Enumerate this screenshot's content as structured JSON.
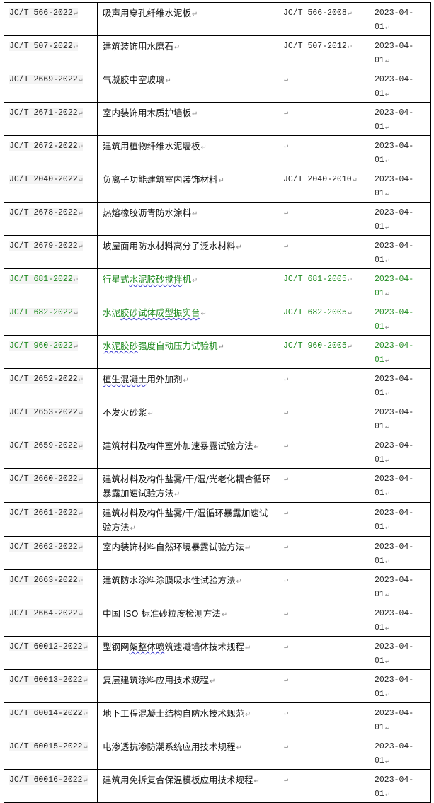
{
  "colors": {
    "green_rows": "#1e8a1e",
    "text": "#111111"
  },
  "rows": [
    {
      "code": "JC/T 566-2022",
      "name": "吸声用穿孔纤维水泥板",
      "replaces": "JC/T 566-2008",
      "date": "2023-04-01"
    },
    {
      "code": "JC/T 507-2022",
      "name": "建筑装饰用水磨石",
      "replaces": "JC/T 507-2012",
      "date": "2023-04-01"
    },
    {
      "code": "JC/T 2669-2022",
      "name": "气凝胶中空玻璃",
      "replaces": "",
      "date": "2023-04-01"
    },
    {
      "code": "JC/T 2671-2022",
      "name": "室内装饰用木质护墙板",
      "replaces": "",
      "date": "2023-04-01"
    },
    {
      "code": "JC/T 2672-2022",
      "name": "建筑用植物纤维水泥墙板",
      "replaces": "",
      "date": "2023-04-01"
    },
    {
      "code": "JC/T 2040-2022",
      "name": "负离子功能建筑室内装饰材料",
      "replaces": "JC/T 2040-2010",
      "date": "2023-04-01"
    },
    {
      "code": "JC/T 2678-2022",
      "name": "热熔橡胶沥青防水涂料",
      "replaces": "",
      "date": "2023-04-01"
    },
    {
      "code": "JC/T 2679-2022",
      "name": "坡屋面用防水材料高分子泛水材料",
      "replaces": "",
      "date": "2023-04-01"
    },
    {
      "code": "JC/T 681-2022",
      "name": "行星式水泥胶砂搅拌机",
      "replaces": "JC/T 681-2005",
      "date": "2023-04-01",
      "green": true
    },
    {
      "code": "JC/T 682-2022",
      "name": "水泥胶砂试体成型振实台",
      "replaces": "JC/T 682-2005",
      "date": "2023-04-01",
      "green": true
    },
    {
      "code": "JC/T 960-2022",
      "name": "水泥胶砂强度自动压力试验机",
      "replaces": "JC/T 960-2005",
      "date": "2023-04-01",
      "green": true
    },
    {
      "code": "JC/T 2652-2022",
      "name": "植生混凝土用外加剂",
      "replaces": "",
      "date": "2023-04-01"
    },
    {
      "code": "JC/T 2653-2022",
      "name": "不发火砂浆",
      "replaces": "",
      "date": "2023-04-01"
    },
    {
      "code": "JC/T 2659-2022",
      "name": "建筑材料及构件室外加速暴露试验方法",
      "replaces": "",
      "date": "2023-04-01"
    },
    {
      "code": "JC/T 2660-2022",
      "name": "建筑材料及构件盐雾/干/湿/光老化耦合循环暴露加速试验方法",
      "replaces": "",
      "date": "2023-04-01",
      "tall": true
    },
    {
      "code": "JC/T 2661-2022",
      "name": "建筑材料及构件盐雾/干/湿循环暴露加速试验方法",
      "replaces": "",
      "date": "2023-04-01",
      "tall": true
    },
    {
      "code": "JC/T 2662-2022",
      "name": "室内装饰材料自然环境暴露试验方法",
      "replaces": "",
      "date": "2023-04-01"
    },
    {
      "code": "JC/T 2663-2022",
      "name": "建筑防水涂料涂膜吸水性试验方法",
      "replaces": "",
      "date": "2023-04-01"
    },
    {
      "code": "JC/T 2664-2022",
      "name": "中国 ISO 标准砂粒度检测方法",
      "replaces": "",
      "date": "2023-04-01"
    },
    {
      "code": "JC/T 60012-2022",
      "name": "型钢网架整体喷筑速凝墙体技术规程",
      "replaces": "",
      "date": "2023-04-01"
    },
    {
      "code": "JC/T 60013-2022",
      "name": "复层建筑涂料应用技术规程",
      "replaces": "",
      "date": "2023-04-01"
    },
    {
      "code": "JC/T 60014-2022",
      "name": "地下工程混凝土结构自防水技术规范",
      "replaces": "",
      "date": "2023-04-01"
    },
    {
      "code": "JC/T 60015-2022",
      "name": "电渗透抗渗防潮系统应用技术规程",
      "replaces": "",
      "date": "2023-04-01"
    },
    {
      "code": "JC/T 60016-2022",
      "name": "建筑用免拆复合保温模板应用技术规程",
      "replaces": "",
      "date": "2023-04-01"
    }
  ]
}
